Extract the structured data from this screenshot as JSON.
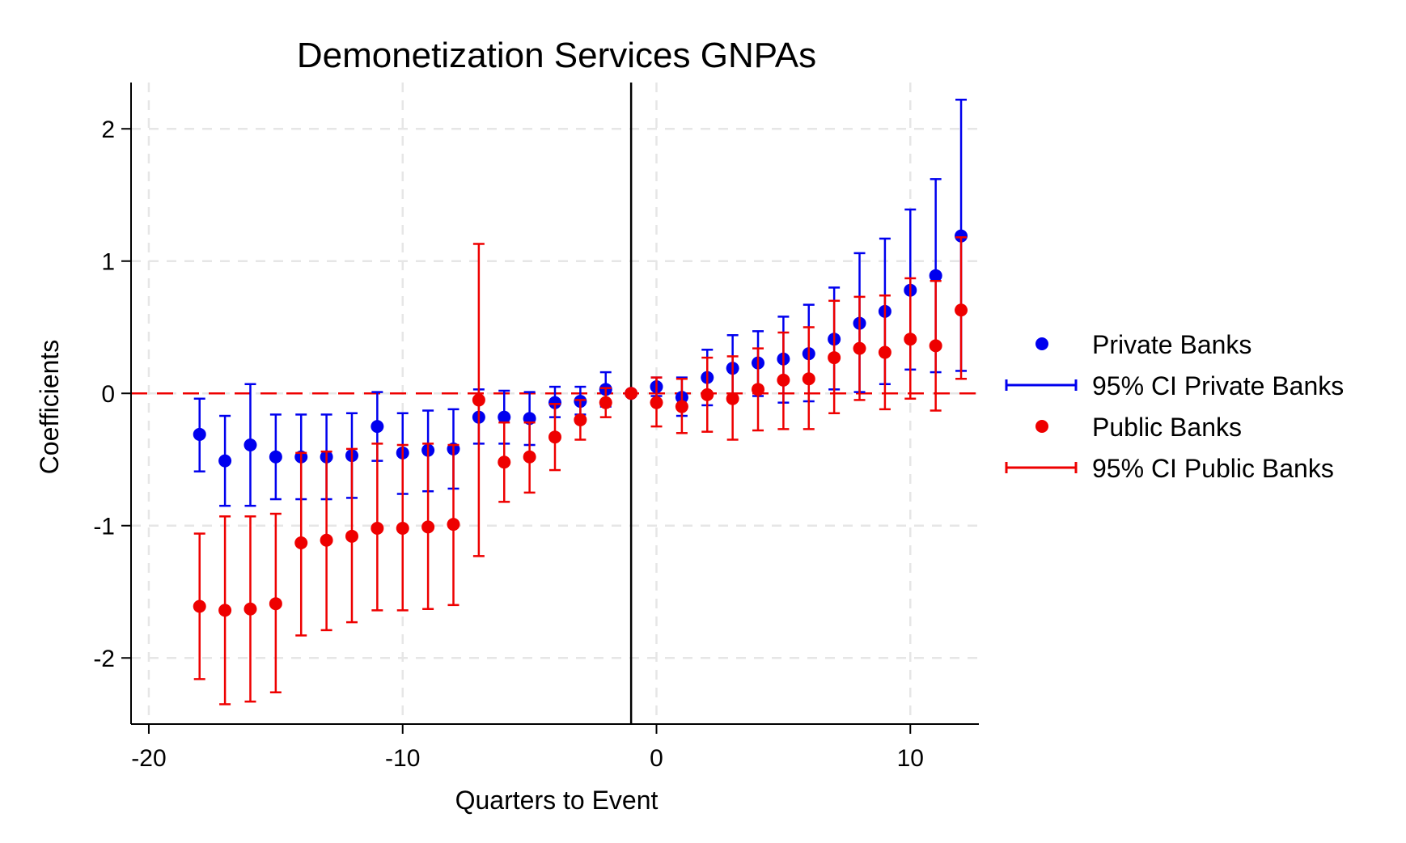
{
  "chart_data": {
    "type": "scatter",
    "title": "Demonetization Services GNPAs",
    "xlabel": "Quarters to Event",
    "ylabel": "Coefficients",
    "xlim": [
      -20.7,
      12.7
    ],
    "ylim": [
      -2.5,
      2.35
    ],
    "xticks": [
      -20,
      -10,
      0,
      10
    ],
    "xtick_labels": [
      "-20",
      "-10",
      "0",
      "10"
    ],
    "yticks": [
      -2,
      -1,
      0,
      1,
      2
    ],
    "ytick_labels": [
      "-2",
      "-1",
      "0",
      "1",
      "2"
    ],
    "grid": true,
    "reference_lines": {
      "horizontal_dashed_y": 0,
      "vertical_solid_x": -1
    },
    "legend_position": "right",
    "colors": {
      "private": "#0000ee",
      "public": "#ee0000",
      "grid": "#e6e6e6",
      "axis": "#000000"
    },
    "x": [
      -18,
      -17,
      -16,
      -15,
      -14,
      -13,
      -12,
      -11,
      -10,
      -9,
      -8,
      -7,
      -6,
      -5,
      -4,
      -3,
      -2,
      -1,
      0,
      1,
      2,
      3,
      4,
      5,
      6,
      7,
      8,
      9,
      10,
      11,
      12
    ],
    "series": [
      {
        "name": "Private Banks",
        "ci_name": "95% CI Private Banks",
        "color": "#0000ee",
        "values": [
          -0.31,
          -0.51,
          -0.39,
          -0.48,
          -0.48,
          -0.48,
          -0.47,
          -0.25,
          -0.45,
          -0.43,
          -0.42,
          -0.18,
          -0.18,
          -0.19,
          -0.07,
          -0.06,
          0.03,
          0.0,
          0.05,
          -0.03,
          0.12,
          0.19,
          0.23,
          0.26,
          0.3,
          0.41,
          0.53,
          0.62,
          0.78,
          0.89,
          1.19
        ],
        "ci_low": [
          -0.59,
          -0.85,
          -0.85,
          -0.8,
          -0.8,
          -0.8,
          -0.79,
          -0.51,
          -0.76,
          -0.74,
          -0.72,
          -0.38,
          -0.38,
          -0.39,
          -0.18,
          -0.16,
          -0.1,
          0.0,
          -0.02,
          -0.17,
          -0.09,
          -0.05,
          -0.02,
          -0.07,
          -0.06,
          0.03,
          0.01,
          0.07,
          0.18,
          0.16,
          0.17
        ],
        "ci_high": [
          -0.04,
          -0.17,
          0.07,
          -0.16,
          -0.16,
          -0.16,
          -0.15,
          0.01,
          -0.15,
          -0.13,
          -0.12,
          0.03,
          0.02,
          0.01,
          0.05,
          0.05,
          0.16,
          0.0,
          0.12,
          0.12,
          0.33,
          0.44,
          0.47,
          0.58,
          0.67,
          0.8,
          1.06,
          1.17,
          1.39,
          1.62,
          2.22
        ]
      },
      {
        "name": "Public Banks",
        "ci_name": "95% CI Public Banks",
        "color": "#ee0000",
        "values": [
          -1.61,
          -1.64,
          -1.63,
          -1.59,
          -1.13,
          -1.11,
          -1.08,
          -1.02,
          -1.02,
          -1.01,
          -0.99,
          -0.05,
          -0.52,
          -0.48,
          -0.33,
          -0.2,
          -0.07,
          0.0,
          -0.07,
          -0.1,
          -0.01,
          -0.04,
          0.03,
          0.1,
          0.11,
          0.27,
          0.34,
          0.31,
          0.41,
          0.36,
          0.63
        ],
        "ci_low": [
          -2.16,
          -2.35,
          -2.33,
          -2.26,
          -1.83,
          -1.79,
          -1.73,
          -1.64,
          -1.64,
          -1.63,
          -1.6,
          -1.23,
          -0.82,
          -0.75,
          -0.58,
          -0.35,
          -0.18,
          0.0,
          -0.25,
          -0.3,
          -0.29,
          -0.35,
          -0.28,
          -0.27,
          -0.27,
          -0.15,
          -0.05,
          -0.12,
          -0.04,
          -0.13,
          0.11
        ],
        "ci_high": [
          -1.06,
          -0.93,
          -0.93,
          -0.91,
          -0.45,
          -0.44,
          -0.42,
          -0.38,
          -0.39,
          -0.38,
          -0.39,
          1.13,
          -0.22,
          -0.22,
          -0.08,
          -0.05,
          0.04,
          0.0,
          0.12,
          0.11,
          0.27,
          0.28,
          0.34,
          0.46,
          0.5,
          0.7,
          0.73,
          0.74,
          0.87,
          0.85,
          1.18
        ]
      }
    ]
  }
}
